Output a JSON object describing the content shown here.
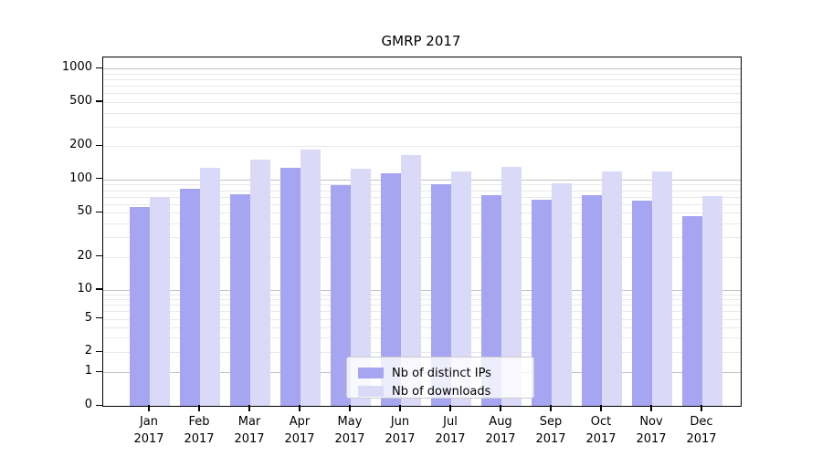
{
  "chart_data": {
    "type": "bar",
    "title": "GMRP 2017",
    "categories": [
      "Jan 2017",
      "Feb 2017",
      "Mar 2017",
      "Apr 2017",
      "May 2017",
      "Jun 2017",
      "Jul 2017",
      "Aug 2017",
      "Sep 2017",
      "Oct 2017",
      "Nov 2017",
      "Dec 2017"
    ],
    "series": [
      {
        "name": "Nb of distinct IPs",
        "color": "#a5a5f1",
        "values": [
          56,
          82,
          74,
          128,
          89,
          113,
          91,
          72,
          65,
          72,
          64,
          47
        ]
      },
      {
        "name": "Nb of downloads",
        "color": "#dadaf8",
        "values": [
          70,
          127,
          152,
          187,
          124,
          165,
          119,
          130,
          93,
          118,
          119,
          71
        ]
      }
    ],
    "xlabel": "",
    "ylabel": "",
    "yscale": "symlog",
    "yticks": [
      0,
      1,
      2,
      5,
      10,
      20,
      50,
      100,
      200,
      500,
      1000
    ],
    "ylim": [
      0,
      1300
    ],
    "grid": "horizontal",
    "legend_position": "lower-center-inside",
    "colors": {
      "axis": "#000000",
      "major_grid": "#c2c2c2",
      "minor_grid": "#e9e9e9",
      "background": "#ffffff"
    }
  }
}
